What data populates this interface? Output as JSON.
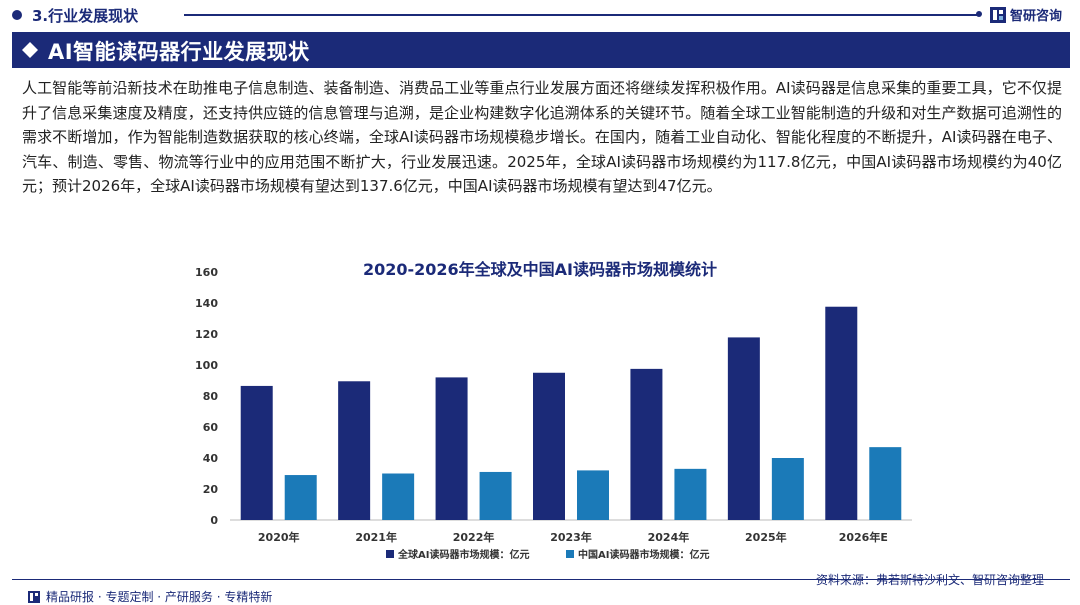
{
  "header": {
    "section_title": "3.行业发展现状",
    "brand": "智研咨询"
  },
  "banner": {
    "title": "AI智能读码器行业发展现状"
  },
  "intro": "人工智能等前沿新技术在助推电子信息制造、装备制造、消费品工业等重点行业发展方面还将继续发挥积极作用。AI读码器是信息采集的重要工具，它不仅提升了信息采集速度及精度，还支持供应链的信息管理与追溯，是企业构建数字化追溯体系的关键环节。随着全球工业智能制造的升级和对生产数据可追溯性的需求不断增加，作为智能制造数据获取的核心终端，全球AI读码器市场规模稳步增长。在国内，随着工业自动化、智能化程度的不断提升，AI读码器在电子、汽车、制造、零售、物流等行业中的应用范围不断扩大，行业发展迅速。2025年，全球AI读码器市场规模约为117.8亿元，中国AI读码器市场规模约为40亿元；预计2026年，全球AI读码器市场规模有望达到137.6亿元，中国AI读码器市场规模有望达到47亿元。",
  "chart_data": {
    "type": "bar",
    "title": "2020-2026年全球及中国AI读码器市场规模统计",
    "categories": [
      "2020年",
      "2021年",
      "2022年",
      "2023年",
      "2024年",
      "2025年",
      "2026年E"
    ],
    "series": [
      {
        "name": "全球AI读码器市场规模：亿元",
        "color": "#1b2a78",
        "values": [
          86.5,
          89.5,
          92.0,
          95.0,
          97.5,
          117.8,
          137.6
        ]
      },
      {
        "name": "中国AI读码器市场规模：亿元",
        "color": "#1b7ab8",
        "values": [
          29.0,
          30.0,
          31.0,
          32.0,
          33.0,
          40.0,
          47.0
        ]
      }
    ],
    "ylim": [
      0,
      160
    ],
    "yticks": [
      0,
      20,
      40,
      60,
      80,
      100,
      120,
      140,
      160
    ],
    "xlabel": "",
    "ylabel": "",
    "grid": false,
    "legend": "bottom"
  },
  "footer": {
    "services": "精品研报 · 专题定制 · 产研服务 · 专精特新",
    "source": "资料来源：弗若斯特沙利文、智研咨询整理"
  },
  "colors": {
    "brand_navy": "#1b2a78",
    "china_blue": "#1b7ab8"
  }
}
